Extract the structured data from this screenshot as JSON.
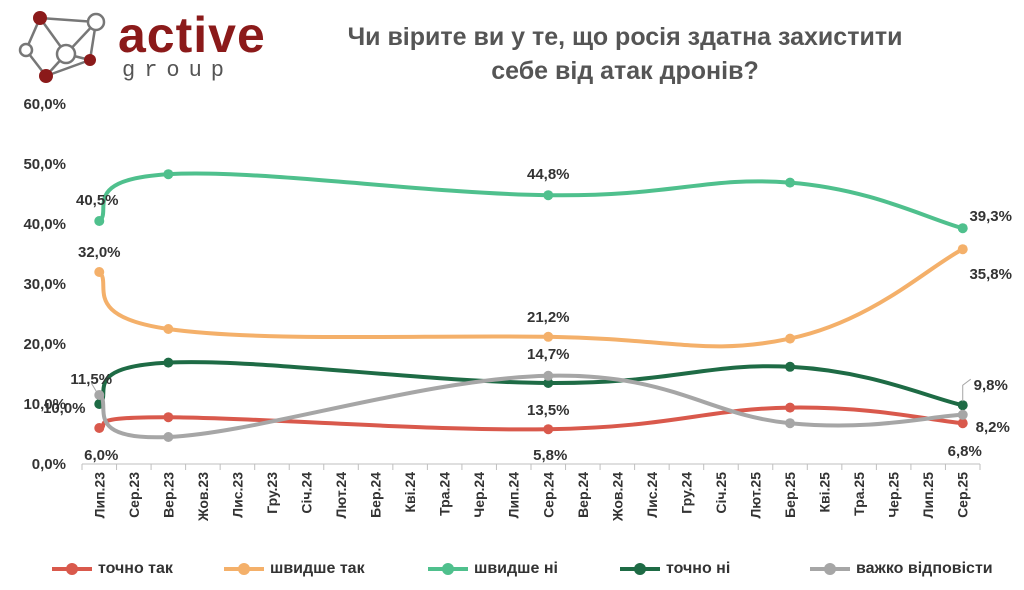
{
  "logo": {
    "word": "active",
    "sub": "group"
  },
  "chart_data": {
    "type": "line",
    "title_lines": [
      "Чи вірите ви у те, що росія здатна захистити",
      "себе від атак дронів?"
    ],
    "categories": [
      "Лип.23",
      "Сер.23",
      "Вер.23",
      "Жов.23",
      "Лис.23",
      "Гру.23",
      "Січ.24",
      "Лют.24",
      "Бер.24",
      "Кві.24",
      "Тра.24",
      "Чер.24",
      "Лип.24",
      "Сер.24",
      "Вер.24",
      "Жов.24",
      "Лис.24",
      "Гру.24",
      "Січ.25",
      "Лют.25",
      "Бер.25",
      "Кві.25",
      "Тра.25",
      "Чер.25",
      "Лип.25",
      "Сер.25"
    ],
    "ylim": [
      0,
      60
    ],
    "yticks": [
      "0,0%",
      "10,0%",
      "20,0%",
      "30,0%",
      "40,0%",
      "50,0%",
      "60,0%"
    ],
    "legend_position": "bottom",
    "series": [
      {
        "name": "точно так",
        "color": "#d9594c",
        "points": [
          {
            "x": 0,
            "y": 6.0
          },
          {
            "x": 2,
            "y": 7.8
          },
          {
            "x": 13,
            "y": 5.8
          },
          {
            "x": 20,
            "y": 9.4
          },
          {
            "x": 25,
            "y": 6.8
          }
        ],
        "labels": [
          {
            "i": 0,
            "text": "6,0%"
          },
          {
            "i": 2,
            "text": "5,8%"
          },
          {
            "i": 4,
            "text": "6,8%"
          }
        ]
      },
      {
        "name": "швидше так",
        "color": "#f4b06a",
        "points": [
          {
            "x": 0,
            "y": 32.0
          },
          {
            "x": 2,
            "y": 22.5
          },
          {
            "x": 13,
            "y": 21.2
          },
          {
            "x": 20,
            "y": 20.9
          },
          {
            "x": 25,
            "y": 35.8
          }
        ],
        "labels": [
          {
            "i": 0,
            "text": "32,0%"
          },
          {
            "i": 2,
            "text": "21,2%"
          },
          {
            "i": 4,
            "text": "35,8%"
          }
        ]
      },
      {
        "name": "швидше ні",
        "color": "#4fc08d",
        "points": [
          {
            "x": 0,
            "y": 40.5
          },
          {
            "x": 2,
            "y": 48.3
          },
          {
            "x": 13,
            "y": 44.8
          },
          {
            "x": 20,
            "y": 46.9
          },
          {
            "x": 25,
            "y": 39.3
          }
        ],
        "labels": [
          {
            "i": 0,
            "text": "40,5%"
          },
          {
            "i": 2,
            "text": "44,8%"
          },
          {
            "i": 4,
            "text": "39,3%"
          }
        ]
      },
      {
        "name": "точно ні",
        "color": "#1e6b45",
        "points": [
          {
            "x": 0,
            "y": 10.0
          },
          {
            "x": 2,
            "y": 16.9
          },
          {
            "x": 13,
            "y": 13.5
          },
          {
            "x": 20,
            "y": 16.2
          },
          {
            "x": 25,
            "y": 9.8
          }
        ],
        "labels": [
          {
            "i": 0,
            "text": "10,0%"
          },
          {
            "i": 2,
            "text": "13,5%"
          },
          {
            "i": 4,
            "text": "9,8%"
          }
        ]
      },
      {
        "name": "важко відповісти",
        "color": "#a6a6a6",
        "points": [
          {
            "x": 0,
            "y": 11.5
          },
          {
            "x": 2,
            "y": 4.5
          },
          {
            "x": 13,
            "y": 14.7
          },
          {
            "x": 20,
            "y": 6.8
          },
          {
            "x": 25,
            "y": 8.2
          }
        ],
        "labels": [
          {
            "i": 0,
            "text": "11,5%"
          },
          {
            "i": 2,
            "text": "14,7%"
          },
          {
            "i": 4,
            "text": "8,2%"
          }
        ]
      }
    ]
  }
}
